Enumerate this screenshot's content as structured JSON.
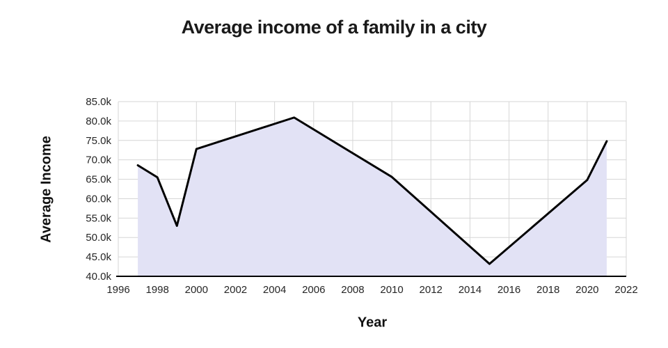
{
  "chart_data": {
    "type": "area",
    "title": "Average income of a family in a city",
    "xlabel": "Year",
    "ylabel": "Average Income",
    "x": [
      1997,
      1998,
      1999,
      2000,
      2005,
      2010,
      2015,
      2020,
      2021
    ],
    "series": [
      {
        "name": "Average Income",
        "values": [
          68600,
          65500,
          53000,
          72800,
          80900,
          65600,
          43200,
          64800,
          74800
        ]
      }
    ],
    "xlim": [
      1996,
      2022
    ],
    "ylim": [
      40000,
      85000
    ],
    "x_ticks": [
      {
        "value": 1996,
        "label": "1996"
      },
      {
        "value": 1998,
        "label": "1998"
      },
      {
        "value": 2000,
        "label": "2000"
      },
      {
        "value": 2002,
        "label": "2002"
      },
      {
        "value": 2004,
        "label": "2004"
      },
      {
        "value": 2006,
        "label": "2006"
      },
      {
        "value": 2008,
        "label": "2008"
      },
      {
        "value": 2010,
        "label": "2010"
      },
      {
        "value": 2012,
        "label": "2012"
      },
      {
        "value": 2014,
        "label": "2014"
      },
      {
        "value": 2016,
        "label": "2016"
      },
      {
        "value": 2018,
        "label": "2018"
      },
      {
        "value": 2020,
        "label": "2020"
      },
      {
        "value": 2022,
        "label": "2022"
      }
    ],
    "y_ticks": [
      {
        "value": 40000,
        "label": "40.0k"
      },
      {
        "value": 45000,
        "label": "45.0k"
      },
      {
        "value": 50000,
        "label": "50.0k"
      },
      {
        "value": 55000,
        "label": "55.0k"
      },
      {
        "value": 60000,
        "label": "60.0k"
      },
      {
        "value": 65000,
        "label": "65.0k"
      },
      {
        "value": 70000,
        "label": "70.0k"
      },
      {
        "value": 75000,
        "label": "75.0k"
      },
      {
        "value": 80000,
        "label": "80.0k"
      },
      {
        "value": 85000,
        "label": "85.0k"
      }
    ],
    "grid": true,
    "legend_position": "none",
    "colors": {
      "line": "#000000",
      "fill": "#e2e2f5",
      "grid": "#d6d6d6",
      "axis": "#000000",
      "tick_text": "#262626",
      "title_text": "#1a1a1a"
    }
  }
}
